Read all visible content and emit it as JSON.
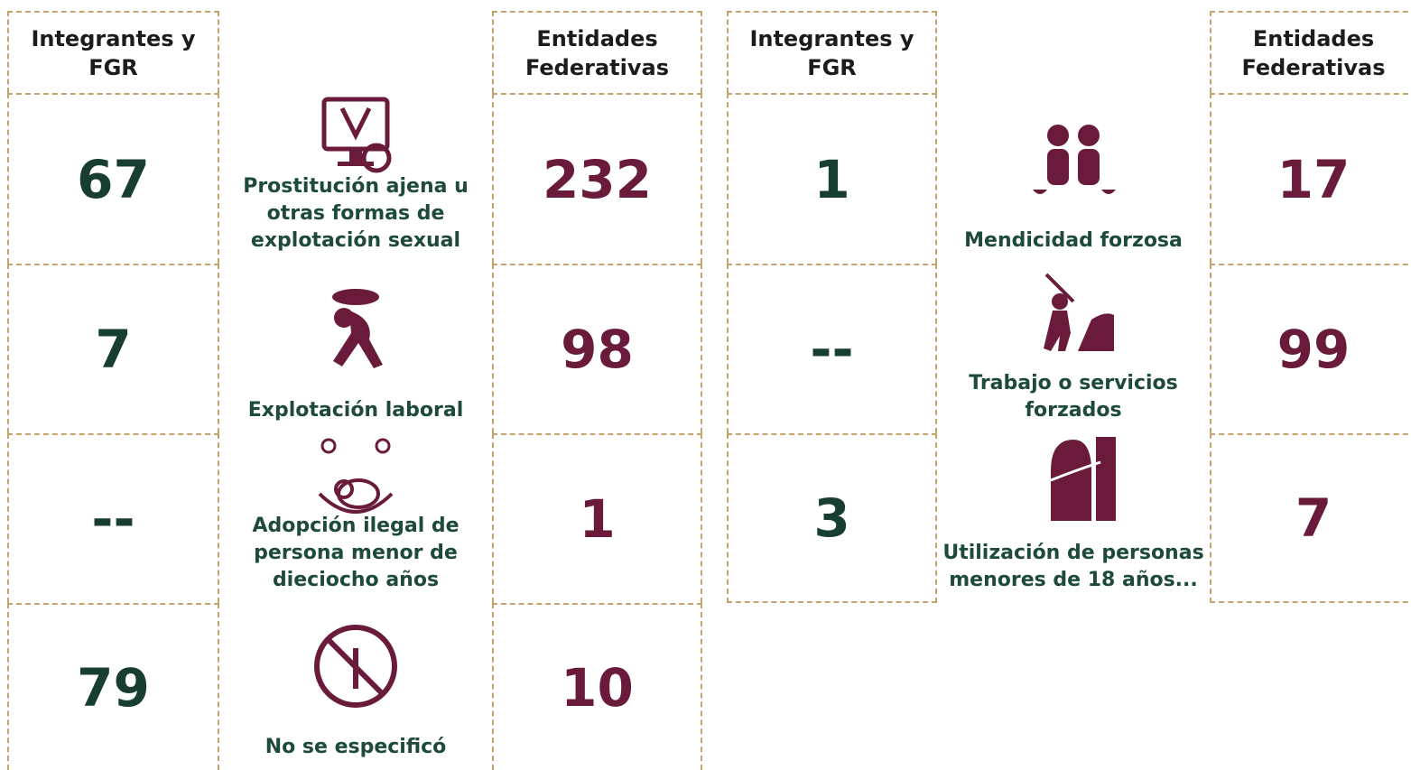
{
  "groups": [
    {
      "headers": [
        "Integrantes y FGR",
        "Entidades Federativas"
      ],
      "rows": [
        {
          "label": "Prostitución ajena u otras formas de explotación sexual",
          "left": 67,
          "right": 232
        },
        {
          "label": "Explotación laboral",
          "left": 7,
          "right": 98
        },
        {
          "label": "Adopción ilegal de persona menor de dieciocho años",
          "left": "--",
          "right": 1
        },
        {
          "label": "No se especificó",
          "left": 79,
          "right": 10
        }
      ]
    },
    {
      "headers": [
        "Integrantes y FGR",
        "Entidades Federativas"
      ],
      "rows": [
        {
          "label": "Mendicidad forzosa",
          "left": 1,
          "right": 17
        },
        {
          "label": "Trabajo o servicios forzados",
          "left": "--",
          "right": 99
        },
        {
          "label": "Utilización de personas menores de 18 años...",
          "left": 3,
          "right": 7
        }
      ]
    }
  ]
}
